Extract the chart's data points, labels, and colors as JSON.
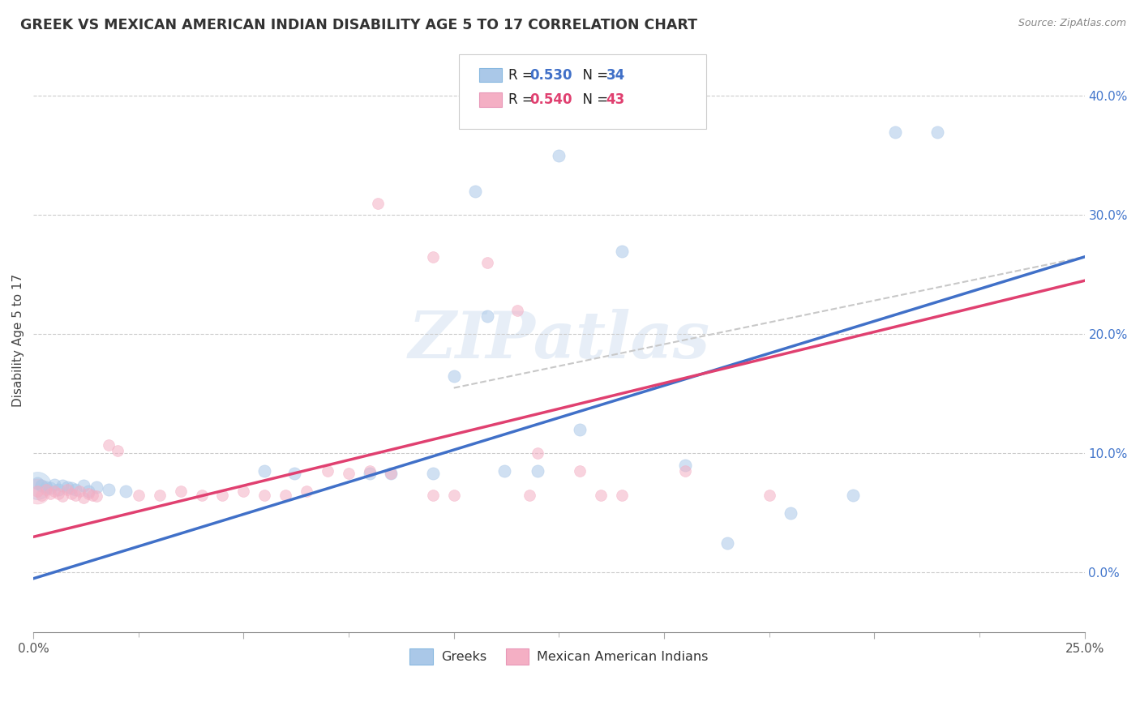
{
  "title": "GREEK VS MEXICAN AMERICAN INDIAN DISABILITY AGE 5 TO 17 CORRELATION CHART",
  "source": "Source: ZipAtlas.com",
  "ylabel": "Disability Age 5 to 17",
  "xlim": [
    0.0,
    0.25
  ],
  "ylim": [
    -0.05,
    0.44
  ],
  "xticks": [
    0.0,
    0.05,
    0.1,
    0.15,
    0.2,
    0.25
  ],
  "xtick_labels": [
    "0.0%",
    "",
    "",
    "",
    "",
    "25.0%"
  ],
  "yticks_right": [
    0.0,
    0.1,
    0.2,
    0.3,
    0.4
  ],
  "ytick_labels_right": [
    "0.0%",
    "10.0%",
    "20.0%",
    "30.0%",
    "40.0%"
  ],
  "background_color": "#ffffff",
  "greek_color": "#aac8e8",
  "mexican_color": "#f4afc4",
  "greek_line_color": "#4070c8",
  "mexican_line_color": "#e04070",
  "dashed_line_color": "#c8c8c8",
  "R_greek": 0.53,
  "N_greek": 34,
  "R_mexican": 0.54,
  "N_mexican": 43,
  "legend_labels": [
    "Greeks",
    "Mexican American Indians"
  ],
  "greek_data": [
    [
      0.001,
      0.075
    ],
    [
      0.002,
      0.073
    ],
    [
      0.003,
      0.072
    ],
    [
      0.004,
      0.071
    ],
    [
      0.005,
      0.074
    ],
    [
      0.006,
      0.07
    ],
    [
      0.007,
      0.073
    ],
    [
      0.008,
      0.072
    ],
    [
      0.009,
      0.071
    ],
    [
      0.01,
      0.07
    ],
    [
      0.012,
      0.073
    ],
    [
      0.013,
      0.068
    ],
    [
      0.015,
      0.072
    ],
    [
      0.018,
      0.07
    ],
    [
      0.022,
      0.068
    ],
    [
      0.055,
      0.085
    ],
    [
      0.062,
      0.083
    ],
    [
      0.08,
      0.083
    ],
    [
      0.085,
      0.083
    ],
    [
      0.095,
      0.083
    ],
    [
      0.1,
      0.165
    ],
    [
      0.108,
      0.215
    ],
    [
      0.112,
      0.085
    ],
    [
      0.12,
      0.085
    ],
    [
      0.13,
      0.12
    ],
    [
      0.105,
      0.32
    ],
    [
      0.125,
      0.35
    ],
    [
      0.14,
      0.27
    ],
    [
      0.155,
      0.09
    ],
    [
      0.165,
      0.025
    ],
    [
      0.18,
      0.05
    ],
    [
      0.195,
      0.065
    ],
    [
      0.205,
      0.37
    ],
    [
      0.215,
      0.37
    ]
  ],
  "mexican_data": [
    [
      0.001,
      0.068
    ],
    [
      0.002,
      0.065
    ],
    [
      0.003,
      0.07
    ],
    [
      0.004,
      0.066
    ],
    [
      0.005,
      0.068
    ],
    [
      0.006,
      0.066
    ],
    [
      0.007,
      0.064
    ],
    [
      0.008,
      0.07
    ],
    [
      0.009,
      0.066
    ],
    [
      0.01,
      0.065
    ],
    [
      0.011,
      0.068
    ],
    [
      0.012,
      0.063
    ],
    [
      0.013,
      0.066
    ],
    [
      0.014,
      0.065
    ],
    [
      0.015,
      0.064
    ],
    [
      0.018,
      0.107
    ],
    [
      0.02,
      0.102
    ],
    [
      0.025,
      0.065
    ],
    [
      0.03,
      0.065
    ],
    [
      0.035,
      0.068
    ],
    [
      0.04,
      0.065
    ],
    [
      0.045,
      0.065
    ],
    [
      0.05,
      0.068
    ],
    [
      0.055,
      0.065
    ],
    [
      0.06,
      0.065
    ],
    [
      0.065,
      0.068
    ],
    [
      0.07,
      0.085
    ],
    [
      0.075,
      0.083
    ],
    [
      0.08,
      0.085
    ],
    [
      0.085,
      0.083
    ],
    [
      0.095,
      0.065
    ],
    [
      0.1,
      0.065
    ],
    [
      0.082,
      0.31
    ],
    [
      0.095,
      0.265
    ],
    [
      0.108,
      0.26
    ],
    [
      0.115,
      0.22
    ],
    [
      0.12,
      0.1
    ],
    [
      0.118,
      0.065
    ],
    [
      0.13,
      0.085
    ],
    [
      0.135,
      0.065
    ],
    [
      0.14,
      0.065
    ],
    [
      0.155,
      0.085
    ],
    [
      0.175,
      0.065
    ]
  ],
  "greek_line_x": [
    0.0,
    0.25
  ],
  "greek_line_y": [
    -0.005,
    0.265
  ],
  "mexican_line_x": [
    0.0,
    0.25
  ],
  "mexican_line_y": [
    0.03,
    0.245
  ],
  "dashed_line_x": [
    0.1,
    0.25
  ],
  "dashed_line_y": [
    0.155,
    0.265
  ]
}
